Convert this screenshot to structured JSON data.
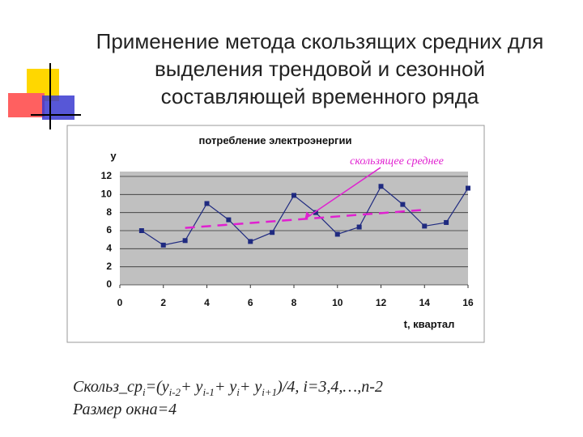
{
  "title": {
    "lines": [
      "Применение метода скользящих средних для",
      "выделения трендовой и сезонной",
      "составляющей временного ряда"
    ]
  },
  "chart_data": {
    "type": "line",
    "title": "потребление электроэнергии",
    "y_label": "у",
    "x_label": "t, квартал",
    "xlim": [
      0,
      16
    ],
    "xticks": [
      0,
      2,
      4,
      6,
      8,
      10,
      12,
      14,
      16
    ],
    "ylim": [
      0,
      12
    ],
    "yticks": [
      0,
      2,
      4,
      6,
      8,
      10,
      12
    ],
    "grid": true,
    "series": [
      {
        "color": "#1f2a80",
        "x": [
          1,
          2,
          3,
          4,
          5,
          6,
          7,
          8,
          9,
          10,
          11,
          12,
          13,
          14,
          15,
          16
        ],
        "values": [
          6.0,
          4.4,
          4.9,
          9.0,
          7.2,
          4.8,
          5.8,
          9.9,
          8.0,
          5.6,
          6.4,
          10.9,
          8.9,
          6.5,
          6.9,
          10.7
        ]
      },
      {
        "name": "скользящее среднее",
        "color": "#e020d0",
        "x": [
          3,
          14
        ],
        "values": [
          6.3,
          8.3
        ]
      }
    ]
  },
  "formula": {
    "parts": [
      "Скольз_ср",
      "i",
      "=(y",
      "i-2",
      "+ y",
      "i-1",
      "+ y",
      "i",
      "+ y",
      "i+1",
      ")/4, i=3,4,…,n-2"
    ],
    "window": "Размер окна=4"
  }
}
